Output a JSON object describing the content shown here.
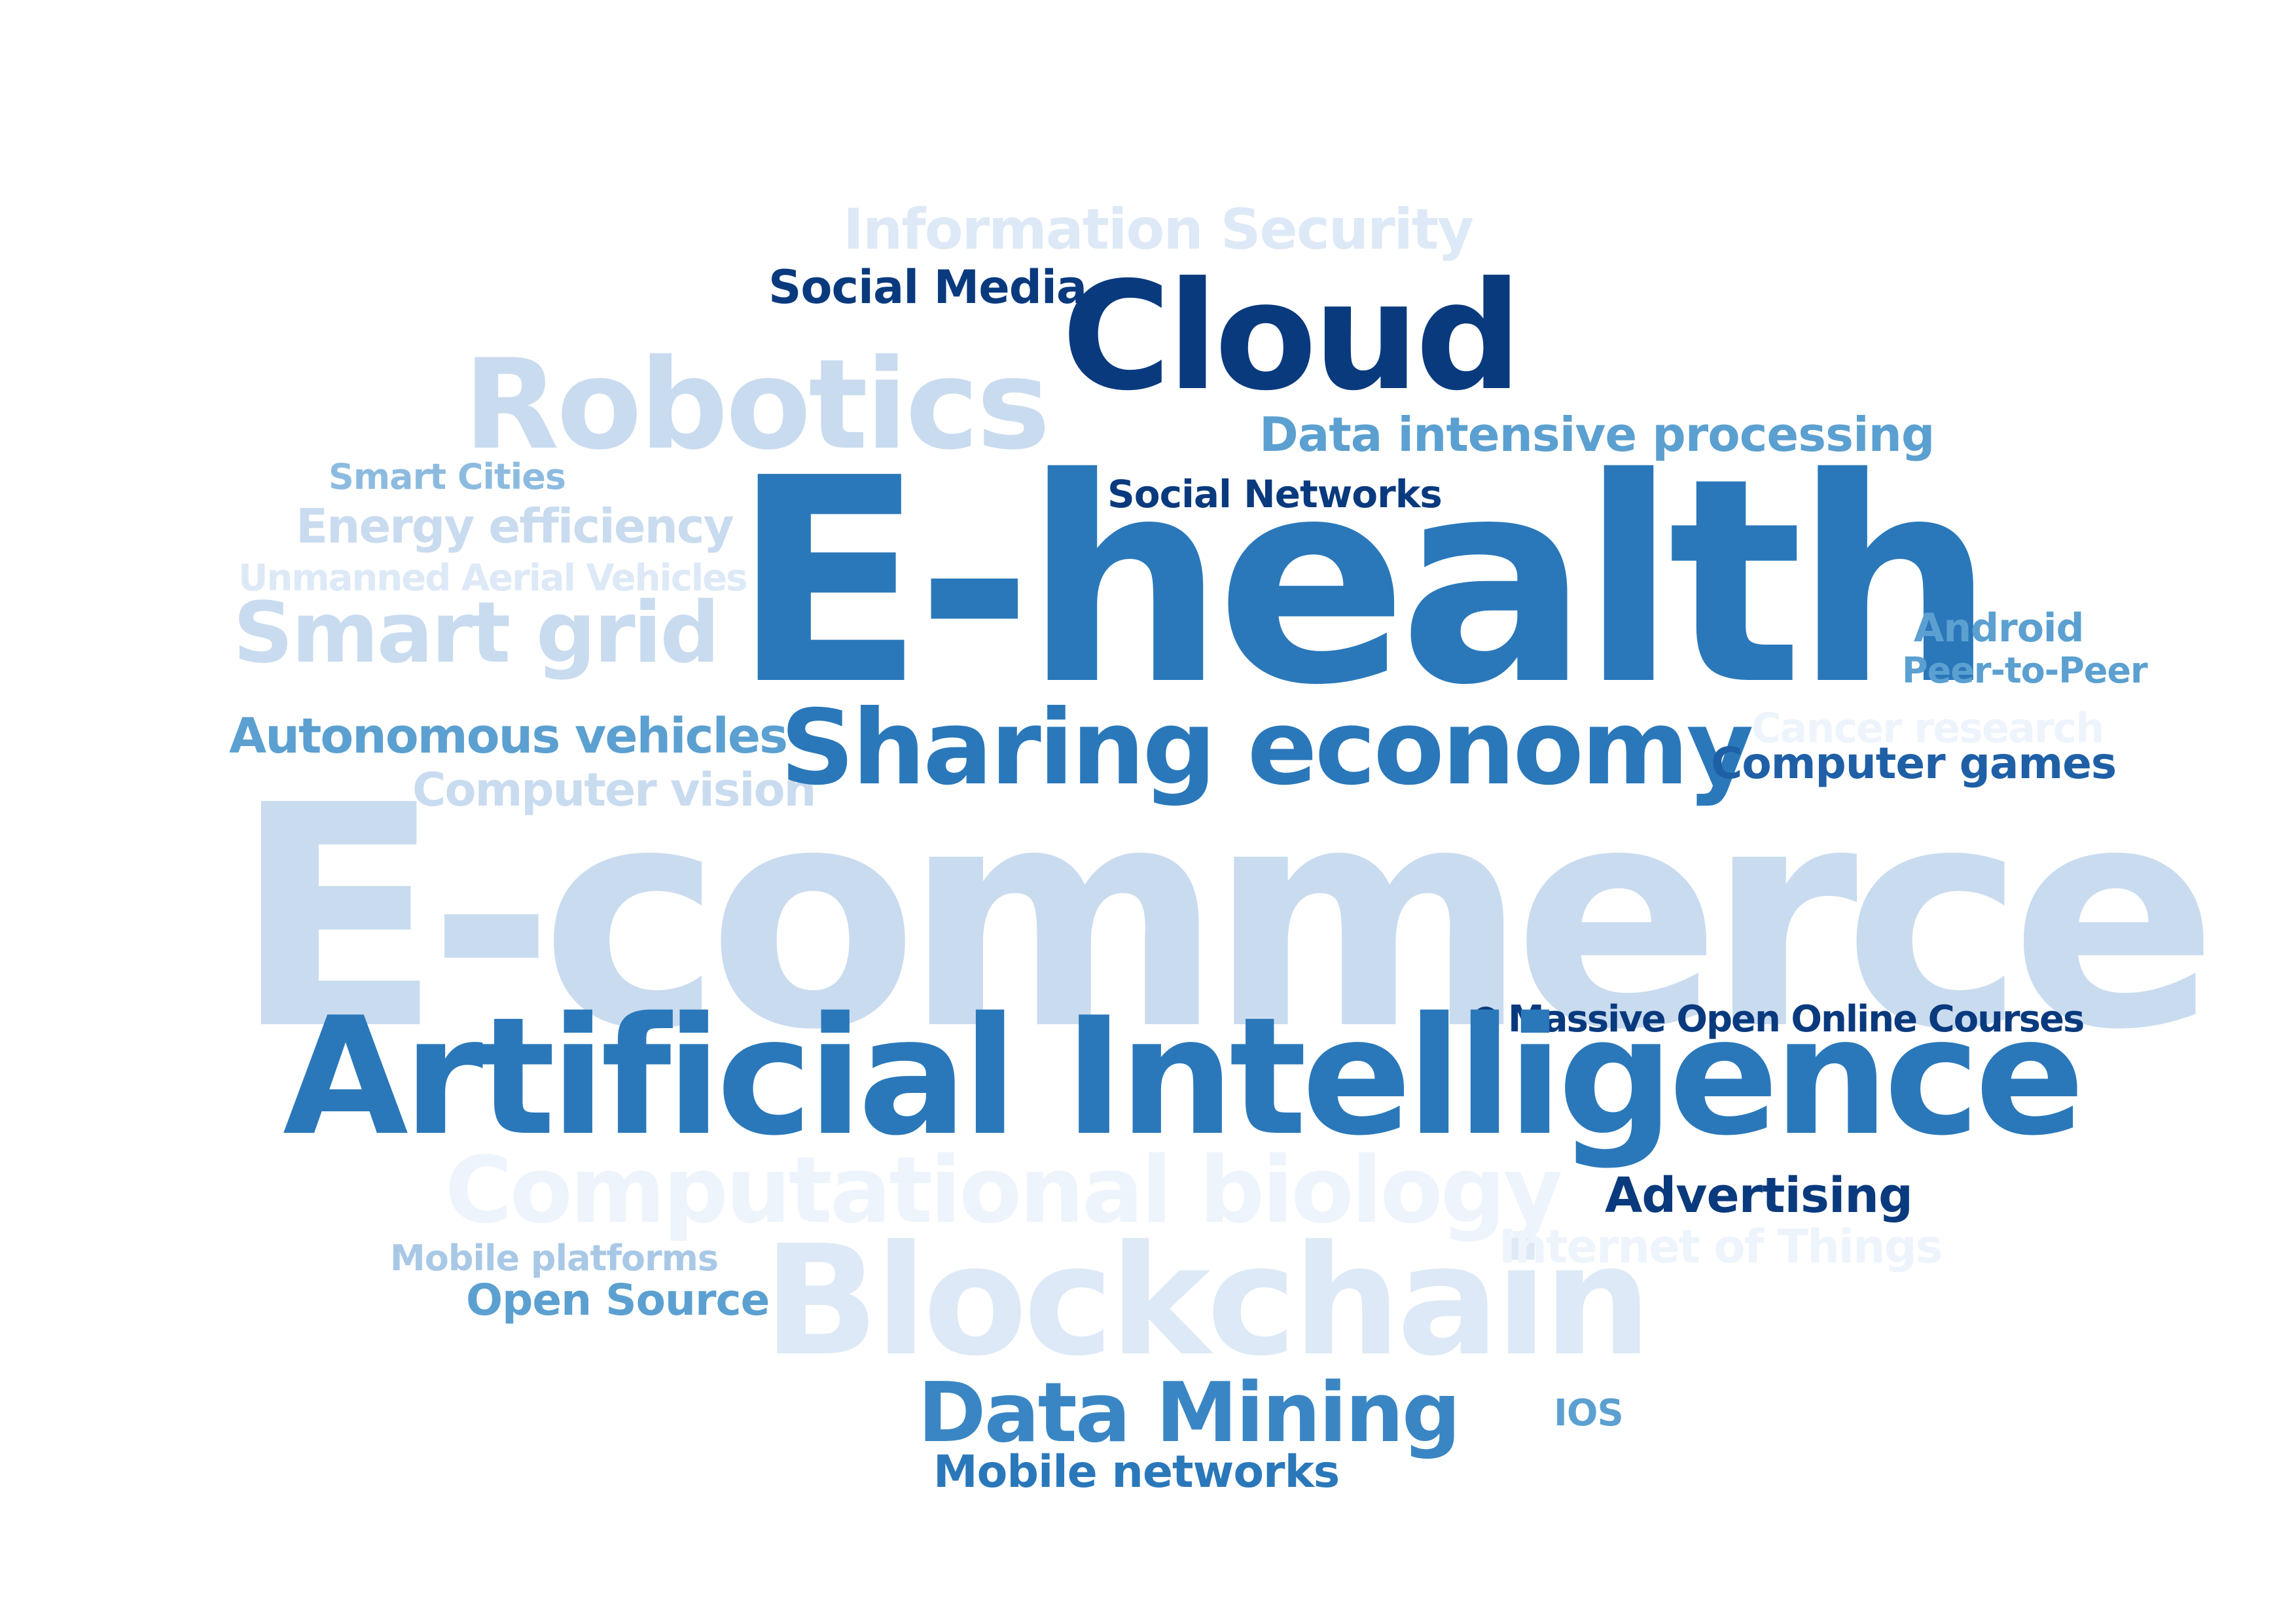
{
  "words": {
    "information_security": {
      "text": "Information Security",
      "color": "#dde9f6"
    },
    "social_media": {
      "text": "Social Media",
      "color": "#0a3a7e"
    },
    "cloud": {
      "text": "Cloud",
      "color": "#0a3a7e"
    },
    "robotics": {
      "text": "Robotics",
      "color": "#c9dbef"
    },
    "data_intensive": {
      "text": "Data intensive processing",
      "color": "#5ba0d0"
    },
    "smart_cities": {
      "text": "Smart Cities",
      "color": "#8dbbe0"
    },
    "social_networks": {
      "text": "Social Networks",
      "color": "#0a3a7e"
    },
    "e_health": {
      "text": "E-health",
      "color": "#2a78ba"
    },
    "energy_efficiency": {
      "text": "Energy efficiency",
      "color": "#c9dbef"
    },
    "uav": {
      "text": "Unmanned Aerial Vehicles",
      "color": "#dde9f6"
    },
    "smart_grid": {
      "text": "Smart grid",
      "color": "#c9dbef"
    },
    "android": {
      "text": "Android",
      "color": "#5ba0d0"
    },
    "peer_to_peer": {
      "text": "Peer-to-Peer",
      "color": "#5ba0d0"
    },
    "cancer_research": {
      "text": "Cancer research",
      "color": "#eef4fb"
    },
    "autonomous_vehicles": {
      "text": "Autonomous vehicles",
      "color": "#5ba0d0"
    },
    "sharing_economy": {
      "text": "Sharing economy",
      "color": "#2a78ba"
    },
    "computer_games": {
      "text": "Computer games",
      "color": "#1f5fa6"
    },
    "computer_vision": {
      "text": "Computer vision",
      "color": "#c9dbef"
    },
    "e_commerce": {
      "text": "E-commerce",
      "color": "#c9dbef"
    },
    "mooc": {
      "text": "Massive Open Online Courses",
      "color": "#0a3a7e"
    },
    "artificial_intelligence": {
      "text": "Artificial Intelligence",
      "color": "#2a78ba"
    },
    "computational_biology": {
      "text": "Computational biology",
      "color": "#eef4fb"
    },
    "advertising": {
      "text": "Advertising",
      "color": "#0a3a7e"
    },
    "internet_of_things": {
      "text": "Internet of Things",
      "color": "#eef4fb"
    },
    "mobile_platforms": {
      "text": "Mobile platforms",
      "color": "#a8c8e6"
    },
    "blockchain": {
      "text": "Blockchain",
      "color": "#dde9f6"
    },
    "open_source": {
      "text": "Open Source",
      "color": "#5ba0d0"
    },
    "data_mining": {
      "text": "Data Mining",
      "color": "#3a86c4"
    },
    "ios": {
      "text": "IOS",
      "color": "#5ba0d0"
    },
    "mobile_networks": {
      "text": "Mobile networks",
      "color": "#2a78ba"
    }
  },
  "dot_color": "#0a3a7e"
}
